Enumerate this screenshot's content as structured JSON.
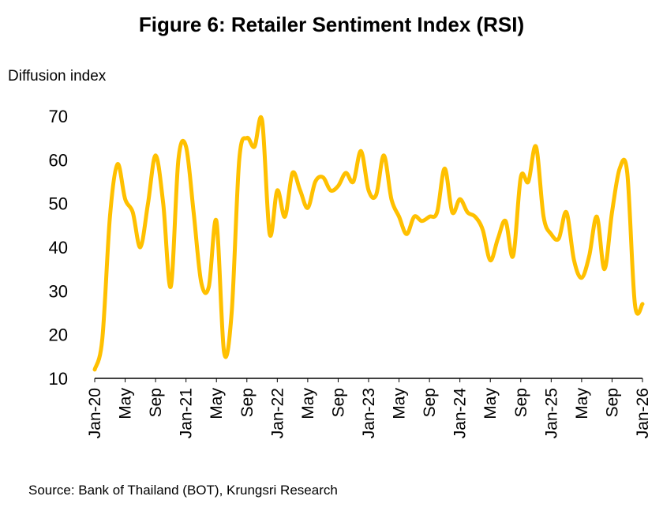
{
  "title": "Figure 6: Retailer Sentiment Index (RSI)",
  "source": "Source:  Bank of Thailand (BOT), Krungsri Research",
  "chart_data": {
    "type": "line",
    "title": "Figure 6: Retailer Sentiment Index (RSI)",
    "ylabel": "Diffusion index",
    "xlabel": "",
    "ylim": [
      10,
      70
    ],
    "yticks": [
      10,
      20,
      30,
      40,
      50,
      60,
      70
    ],
    "xticks": [
      "Jan-20",
      "May",
      "Sep",
      "Jan-21",
      "May",
      "Sep",
      "Jan-22",
      "May",
      "Sep",
      "Jan-23",
      "May",
      "Sep",
      "Jan-24",
      "May",
      "Sep",
      "Jan-25",
      "May",
      "Sep",
      "Jan-26"
    ],
    "grid": false,
    "line_color": "#FFC000",
    "x": [
      "Jan-20",
      "Feb-20",
      "Mar-20",
      "Apr-20",
      "May-20",
      "Jun-20",
      "Jul-20",
      "Aug-20",
      "Sep-20",
      "Oct-20",
      "Nov-20",
      "Dec-20",
      "Jan-21",
      "Feb-21",
      "Mar-21",
      "Apr-21",
      "May-21",
      "Jun-21",
      "Jul-21",
      "Aug-21",
      "Sep-21",
      "Oct-21",
      "Nov-21",
      "Dec-21",
      "Jan-22",
      "Feb-22",
      "Mar-22",
      "Apr-22",
      "May-22",
      "Jun-22",
      "Jul-22",
      "Aug-22",
      "Sep-22",
      "Oct-22",
      "Nov-22",
      "Dec-22",
      "Jan-23",
      "Feb-23",
      "Mar-23",
      "Apr-23",
      "May-23",
      "Jun-23",
      "Jul-23",
      "Aug-23",
      "Sep-23",
      "Oct-23",
      "Nov-23",
      "Dec-23",
      "Jan-24",
      "Feb-24",
      "Mar-24",
      "Apr-24",
      "May-24",
      "Jun-24",
      "Jul-24",
      "Aug-24",
      "Sep-24",
      "Oct-24",
      "Nov-24",
      "Dec-24",
      "Jan-25",
      "Feb-25",
      "Mar-25",
      "Apr-25",
      "May-25",
      "Jun-25",
      "Jul-25",
      "Aug-25",
      "Sep-25",
      "Oct-25",
      "Nov-25",
      "Dec-25",
      "Jan-26"
    ],
    "values": [
      12,
      19,
      47,
      59,
      51,
      48,
      40,
      50,
      61,
      50,
      31,
      60,
      63,
      48,
      32,
      31,
      46,
      16,
      25,
      60,
      65,
      63,
      69,
      43,
      53,
      47,
      57,
      53,
      49,
      55,
      56,
      53,
      54,
      57,
      55,
      62,
      53,
      52,
      61,
      51,
      47,
      43,
      47,
      46,
      47,
      48,
      58,
      48,
      51,
      48,
      47,
      44,
      37,
      42,
      46,
      38,
      56,
      55,
      63,
      47,
      43,
      42,
      48,
      37,
      33,
      38,
      47,
      35,
      48,
      58,
      57,
      27,
      27
    ]
  }
}
